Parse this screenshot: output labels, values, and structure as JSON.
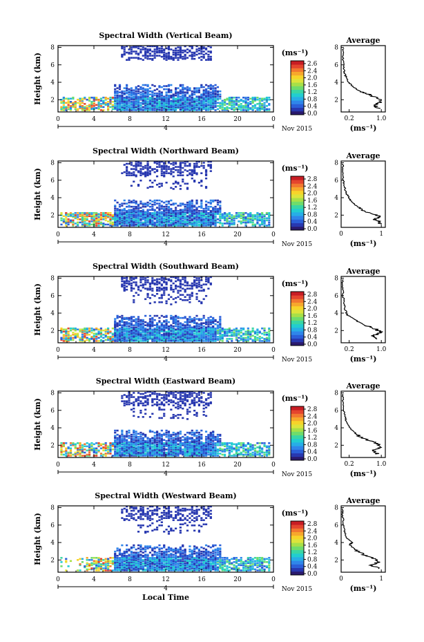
{
  "colors": {
    "scale": [
      "#2a1a6e",
      "#2838b0",
      "#2b5fd9",
      "#2f86ea",
      "#27aee6",
      "#22cdd0",
      "#3ad6a4",
      "#6fdc6c",
      "#a8e048",
      "#dde43c",
      "#f7d42a",
      "#f7a82c",
      "#f27830",
      "#e4452e",
      "#c81d24"
    ],
    "trace": "#000000",
    "axes": "#000000"
  },
  "shared": {
    "x_ticks": [
      "0",
      "4",
      "8",
      "12",
      "16",
      "20",
      "0"
    ],
    "y_ticks_main": [
      "2",
      "4",
      "6",
      "8"
    ],
    "date_label": "Nov 2015",
    "day_marker": "4",
    "colorbar_unit": "(ms⁻¹)",
    "avg_title": "Average",
    "avg_xlabel": "(ms⁻¹)",
    "y_label": "Height (km)",
    "x_label": "Local Time"
  },
  "chart_data": [
    {
      "type": "heatmap",
      "title": "Spectral Width (Vertical Beam)",
      "ylabel": "Height (km)",
      "xlim": [
        0,
        24
      ],
      "ylim": [
        0.6,
        8.2
      ],
      "colorbar_ticks": [
        "2.6",
        "2.4",
        "2.0",
        "1.6",
        "1.2",
        "0.8",
        "0.4",
        "0.0"
      ],
      "average": {
        "title": "Average",
        "xticks": [
          "0.2",
          "1.0"
        ],
        "xlim": [
          0,
          1.1
        ],
        "yticks": [
          "2",
          "4",
          "6",
          "8"
        ],
        "profile": [
          [
            0.95,
            1.0
          ],
          [
            0.82,
            1.4
          ],
          [
            1.0,
            1.8
          ],
          [
            0.9,
            2.2
          ],
          [
            0.7,
            2.6
          ],
          [
            0.45,
            3.0
          ],
          [
            0.3,
            3.5
          ],
          [
            0.18,
            4.0
          ],
          [
            0.12,
            4.6
          ],
          [
            0.08,
            5.2
          ],
          [
            0.06,
            6.0
          ],
          [
            0.05,
            7.0
          ],
          [
            0.05,
            8.0
          ]
        ]
      }
    },
    {
      "type": "heatmap",
      "title": "Spectral Width (Northward Beam)",
      "ylabel": "Height (km)",
      "xlim": [
        0,
        24
      ],
      "ylim": [
        0.6,
        8.2
      ],
      "colorbar_ticks": [
        "2.8",
        "2.4",
        "2.0",
        "1.6",
        "1.2",
        "0.8",
        "0.4",
        "0.0"
      ],
      "average": {
        "title": "Average",
        "xticks": [
          "0",
          "1"
        ],
        "xlim": [
          0,
          1.1
        ],
        "yticks": [
          "2",
          "4",
          "6",
          "8"
        ],
        "profile": [
          [
            1.0,
            1.0
          ],
          [
            0.85,
            1.5
          ],
          [
            0.95,
            1.9
          ],
          [
            0.6,
            2.4
          ],
          [
            0.4,
            3.0
          ],
          [
            0.25,
            3.6
          ],
          [
            0.2,
            4.0
          ],
          [
            0.12,
            4.6
          ],
          [
            0.08,
            5.4
          ],
          [
            0.05,
            6.2
          ],
          [
            0.04,
            7.2
          ],
          [
            0.04,
            8.0
          ]
        ]
      }
    },
    {
      "type": "heatmap",
      "title": "Spectral Width (Southward Beam)",
      "ylabel": "Height (km)",
      "xlim": [
        0,
        24
      ],
      "ylim": [
        0.6,
        8.2
      ],
      "colorbar_ticks": [
        "2.8",
        "2.4",
        "2.0",
        "1.6",
        "1.2",
        "0.8",
        "0.4",
        "0.0"
      ],
      "average": {
        "title": "Average",
        "xticks": [
          "0.2",
          "1.0"
        ],
        "xlim": [
          0,
          1.1
        ],
        "yticks": [
          "2",
          "4",
          "6",
          "8"
        ],
        "profile": [
          [
            0.9,
            1.0
          ],
          [
            0.8,
            1.4
          ],
          [
            1.0,
            1.8
          ],
          [
            0.85,
            2.2
          ],
          [
            0.6,
            2.6
          ],
          [
            0.35,
            3.2
          ],
          [
            0.15,
            3.8
          ],
          [
            0.1,
            4.4
          ],
          [
            0.07,
            5.2
          ],
          [
            0.05,
            6.0
          ],
          [
            0.04,
            7.0
          ],
          [
            0.04,
            8.0
          ]
        ]
      }
    },
    {
      "type": "heatmap",
      "title": "Spectral Width (Eastward Beam)",
      "ylabel": "Height (km)",
      "xlim": [
        0,
        24
      ],
      "ylim": [
        0.6,
        8.2
      ],
      "colorbar_ticks": [
        "2.8",
        "2.4",
        "2.0",
        "1.6",
        "1.2",
        "0.8",
        "0.4",
        "0.0"
      ],
      "average": {
        "title": "Average",
        "xticks": [
          "0.2",
          "1.0"
        ],
        "xlim": [
          0,
          1.1
        ],
        "yticks": [
          "2",
          "4",
          "6",
          "8"
        ],
        "profile": [
          [
            0.9,
            1.0
          ],
          [
            0.8,
            1.4
          ],
          [
            1.0,
            1.8
          ],
          [
            0.9,
            2.2
          ],
          [
            0.65,
            2.6
          ],
          [
            0.4,
            3.2
          ],
          [
            0.25,
            3.8
          ],
          [
            0.15,
            4.4
          ],
          [
            0.1,
            5.2
          ],
          [
            0.07,
            6.0
          ],
          [
            0.05,
            7.0
          ],
          [
            0.04,
            8.0
          ]
        ]
      }
    },
    {
      "type": "heatmap",
      "title": "Spectral Width (Westward Beam)",
      "ylabel": "Height (km)",
      "xlabel": "Local Time",
      "xlim": [
        0,
        24
      ],
      "ylim": [
        0.6,
        8.2
      ],
      "colorbar_ticks": [
        "2.8",
        "2.4",
        "2.0",
        "1.6",
        "1.2",
        "0.8",
        "0.4",
        "0.0"
      ],
      "average": {
        "title": "Average",
        "xticks": [
          "0",
          "1"
        ],
        "xlim": [
          0,
          1.1
        ],
        "yticks": [
          "2",
          "4",
          "6",
          "8"
        ],
        "profile": [
          [
            0.95,
            1.0
          ],
          [
            0.75,
            1.4
          ],
          [
            0.95,
            1.8
          ],
          [
            0.8,
            2.2
          ],
          [
            0.55,
            2.6
          ],
          [
            0.35,
            3.2
          ],
          [
            0.2,
            3.8
          ],
          [
            0.3,
            4.0
          ],
          [
            0.12,
            4.6
          ],
          [
            0.08,
            5.4
          ],
          [
            0.05,
            6.2
          ],
          [
            0.04,
            7.2
          ],
          [
            0.04,
            8.0
          ]
        ]
      }
    }
  ]
}
